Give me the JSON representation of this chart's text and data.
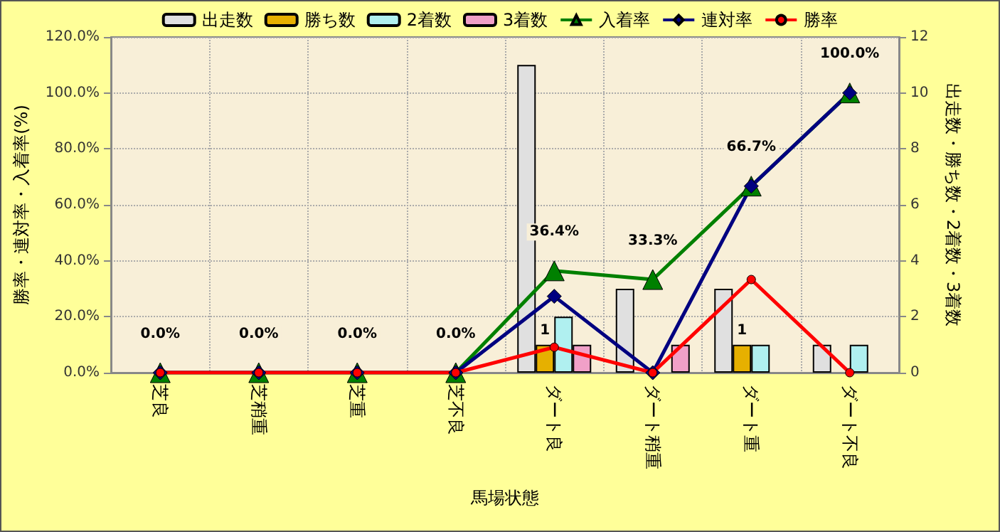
{
  "chart_data": {
    "type": "bar",
    "xlabel": "馬場状態",
    "ylabel": "勝率・連対率・入着率(%)",
    "y2label": "出走数・勝ち数・2着数・3着数",
    "categories": [
      "芝良",
      "芝稍重",
      "芝重",
      "芝不良",
      "ダート良",
      "ダート稍重",
      "ダート重",
      "ダート不良"
    ],
    "series": [
      {
        "name": "出走数",
        "axis": "y2",
        "color": "#e0e0e0",
        "values": [
          0,
          0,
          0,
          0,
          11,
          3,
          3,
          1
        ]
      },
      {
        "name": "勝ち数",
        "axis": "y2",
        "color": "#e6b000",
        "values": [
          0,
          0,
          0,
          0,
          1,
          0,
          1,
          0
        ],
        "value_labels": [
          null,
          null,
          null,
          null,
          "1",
          null,
          "1",
          null
        ]
      },
      {
        "name": "2着数",
        "axis": "y2",
        "color": "#b0f0f0",
        "values": [
          0,
          0,
          0,
          0,
          2,
          0,
          1,
          1
        ]
      },
      {
        "name": "3着数",
        "axis": "y2",
        "color": "#f0a0c8",
        "values": [
          0,
          0,
          0,
          0,
          1,
          1,
          0,
          0
        ]
      },
      {
        "name": "入着率",
        "type": "line",
        "axis": "y",
        "color": "#008000",
        "marker": "triangle",
        "values": [
          0,
          0,
          0,
          0,
          36.4,
          33.3,
          66.7,
          100
        ],
        "value_labels": [
          "0.0%",
          "0.0%",
          "0.0%",
          "0.0%",
          "36.4%",
          "33.3%",
          "66.7%",
          "100.0%"
        ]
      },
      {
        "name": "連対率",
        "type": "line",
        "axis": "y",
        "color": "#000080",
        "marker": "diamond",
        "values": [
          0,
          0,
          0,
          0,
          27.3,
          0,
          66.7,
          100
        ]
      },
      {
        "name": "勝率",
        "type": "line",
        "axis": "y",
        "color": "#ff0000",
        "marker": "circle",
        "values": [
          0,
          0,
          0,
          0,
          9.1,
          0,
          33.3,
          0
        ]
      }
    ],
    "ylim": [
      0,
      120
    ],
    "yticks": [
      {
        "value": 0,
        "label": "0.0%"
      },
      {
        "value": 20,
        "label": "20.0%"
      },
      {
        "value": 40,
        "label": "40.0%"
      },
      {
        "value": 60,
        "label": "60.0%"
      },
      {
        "value": 80,
        "label": "80.0%"
      },
      {
        "value": 100,
        "label": "100.0%"
      },
      {
        "value": 120,
        "label": "120.0%"
      }
    ],
    "y2lim": [
      0,
      12
    ],
    "y2ticks": [
      0,
      2,
      4,
      6,
      8,
      10,
      12
    ],
    "grid": true,
    "legend": "top"
  }
}
